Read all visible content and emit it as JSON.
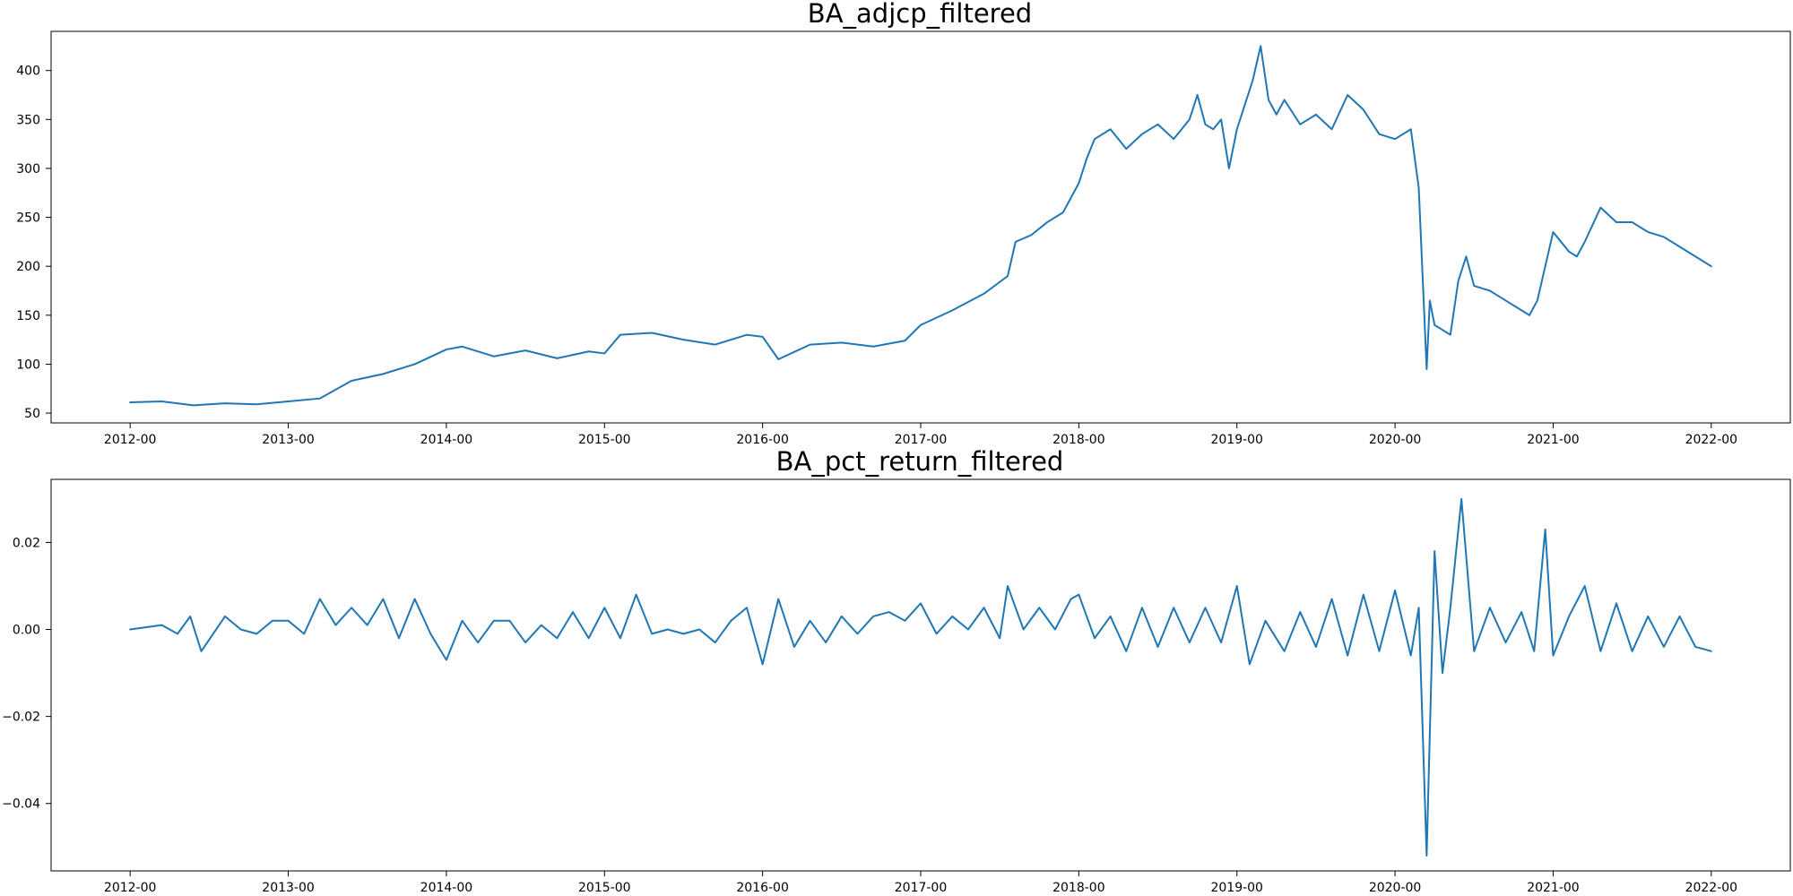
{
  "chart_data": [
    {
      "type": "line",
      "title": "BA_adjcp_filtered",
      "xlabel": "",
      "ylabel": "",
      "x_ticks": [
        "2012-00",
        "2013-00",
        "2014-00",
        "2015-00",
        "2016-00",
        "2017-00",
        "2018-00",
        "2019-00",
        "2020-00",
        "2021-00",
        "2022-00"
      ],
      "y_ticks": [
        50,
        100,
        150,
        200,
        250,
        300,
        350,
        400
      ],
      "xlim": [
        2011.5,
        2022.5
      ],
      "ylim": [
        40,
        440
      ],
      "grid": false,
      "line_color": "#1f77b4",
      "series": [
        {
          "x": [
            2012.0,
            2012.2,
            2012.4,
            2012.6,
            2012.8,
            2013.0,
            2013.2,
            2013.4,
            2013.6,
            2013.8,
            2014.0,
            2014.1,
            2014.3,
            2014.5,
            2014.7,
            2014.9,
            2015.0,
            2015.1,
            2015.3,
            2015.5,
            2015.7,
            2015.9,
            2016.0,
            2016.1,
            2016.3,
            2016.5,
            2016.7,
            2016.9,
            2017.0,
            2017.2,
            2017.4,
            2017.55,
            2017.6,
            2017.7,
            2017.8,
            2017.9,
            2018.0,
            2018.05,
            2018.1,
            2018.2,
            2018.3,
            2018.4,
            2018.5,
            2018.6,
            2018.7,
            2018.75,
            2018.8,
            2018.85,
            2018.9,
            2018.95,
            2019.0,
            2019.1,
            2019.15,
            2019.2,
            2019.25,
            2019.3,
            2019.4,
            2019.5,
            2019.6,
            2019.7,
            2019.8,
            2019.9,
            2020.0,
            2020.1,
            2020.15,
            2020.2,
            2020.22,
            2020.25,
            2020.3,
            2020.35,
            2020.4,
            2020.45,
            2020.5,
            2020.6,
            2020.7,
            2020.8,
            2020.85,
            2020.9,
            2021.0,
            2021.1,
            2021.15,
            2021.2,
            2021.3,
            2021.4,
            2021.5,
            2021.6,
            2021.7,
            2021.8,
            2021.9,
            2022.0
          ],
          "y": [
            61,
            62,
            58,
            60,
            59,
            62,
            65,
            83,
            90,
            100,
            115,
            118,
            108,
            114,
            106,
            113,
            111,
            130,
            132,
            125,
            120,
            130,
            128,
            105,
            120,
            122,
            118,
            124,
            140,
            155,
            172,
            190,
            225,
            232,
            245,
            255,
            285,
            310,
            330,
            340,
            320,
            335,
            345,
            330,
            350,
            375,
            345,
            340,
            350,
            300,
            340,
            390,
            425,
            370,
            355,
            370,
            345,
            355,
            340,
            375,
            360,
            335,
            330,
            340,
            280,
            95,
            165,
            140,
            135,
            130,
            185,
            210,
            180,
            175,
            165,
            155,
            150,
            165,
            235,
            215,
            210,
            225,
            260,
            245,
            245,
            235,
            230,
            220,
            210,
            200
          ]
        }
      ]
    },
    {
      "type": "line",
      "title": "BA_pct_return_filtered",
      "xlabel": "",
      "ylabel": "",
      "x_ticks": [
        "2012-00",
        "2013-00",
        "2014-00",
        "2015-00",
        "2016-00",
        "2017-00",
        "2018-00",
        "2019-00",
        "2020-00",
        "2021-00",
        "2022-00"
      ],
      "y_ticks": [
        "−0.04",
        "−0.02",
        "0.00",
        "0.02"
      ],
      "y_tick_values": [
        -0.04,
        -0.02,
        0.0,
        0.02
      ],
      "xlim": [
        2011.5,
        2022.5
      ],
      "ylim": [
        -0.0555,
        0.0345
      ],
      "grid": false,
      "line_color": "#1f77b4",
      "series": [
        {
          "x": [
            2012.0,
            2012.2,
            2012.3,
            2012.38,
            2012.45,
            2012.6,
            2012.7,
            2012.8,
            2012.9,
            2013.0,
            2013.1,
            2013.2,
            2013.3,
            2013.4,
            2013.5,
            2013.6,
            2013.7,
            2013.8,
            2013.9,
            2014.0,
            2014.1,
            2014.2,
            2014.3,
            2014.4,
            2014.5,
            2014.6,
            2014.7,
            2014.8,
            2014.9,
            2015.0,
            2015.1,
            2015.2,
            2015.3,
            2015.4,
            2015.5,
            2015.6,
            2015.7,
            2015.8,
            2015.9,
            2016.0,
            2016.1,
            2016.2,
            2016.3,
            2016.4,
            2016.5,
            2016.6,
            2016.7,
            2016.8,
            2016.9,
            2017.0,
            2017.1,
            2017.2,
            2017.3,
            2017.4,
            2017.5,
            2017.55,
            2017.65,
            2017.75,
            2017.85,
            2017.95,
            2018.0,
            2018.1,
            2018.2,
            2018.3,
            2018.4,
            2018.5,
            2018.6,
            2018.7,
            2018.8,
            2018.9,
            2019.0,
            2019.08,
            2019.18,
            2019.3,
            2019.4,
            2019.5,
            2019.6,
            2019.7,
            2019.8,
            2019.9,
            2020.0,
            2020.1,
            2020.15,
            2020.2,
            2020.25,
            2020.3,
            2020.35,
            2020.42,
            2020.5,
            2020.6,
            2020.7,
            2020.8,
            2020.88,
            2020.95,
            2021.0,
            2021.1,
            2021.2,
            2021.3,
            2021.4,
            2021.5,
            2021.6,
            2021.7,
            2021.8,
            2021.9,
            2022.0
          ],
          "y": [
            0.0,
            0.001,
            -0.001,
            0.003,
            -0.005,
            0.003,
            0.0,
            -0.001,
            0.002,
            0.002,
            -0.001,
            0.007,
            0.001,
            0.005,
            0.001,
            0.007,
            -0.002,
            0.007,
            -0.001,
            -0.007,
            0.002,
            -0.003,
            0.002,
            0.002,
            -0.003,
            0.001,
            -0.002,
            0.004,
            -0.002,
            0.005,
            -0.002,
            0.008,
            -0.001,
            0.0,
            -0.001,
            0.0,
            -0.003,
            0.002,
            0.005,
            -0.008,
            0.007,
            -0.004,
            0.002,
            -0.003,
            0.003,
            -0.001,
            0.003,
            0.004,
            0.002,
            0.006,
            -0.001,
            0.003,
            0.0,
            0.005,
            -0.002,
            0.01,
            0.0,
            0.005,
            0.0,
            0.007,
            0.008,
            -0.002,
            0.003,
            -0.005,
            0.005,
            -0.004,
            0.005,
            -0.003,
            0.005,
            -0.003,
            0.01,
            -0.008,
            0.002,
            -0.005,
            0.004,
            -0.004,
            0.007,
            -0.006,
            0.008,
            -0.005,
            0.009,
            -0.006,
            0.005,
            -0.052,
            0.018,
            -0.01,
            0.005,
            0.03,
            -0.005,
            0.005,
            -0.003,
            0.004,
            -0.005,
            0.023,
            -0.006,
            0.003,
            0.01,
            -0.005,
            0.006,
            -0.005,
            0.003,
            -0.004,
            0.003,
            -0.004,
            -0.005
          ]
        }
      ]
    }
  ]
}
